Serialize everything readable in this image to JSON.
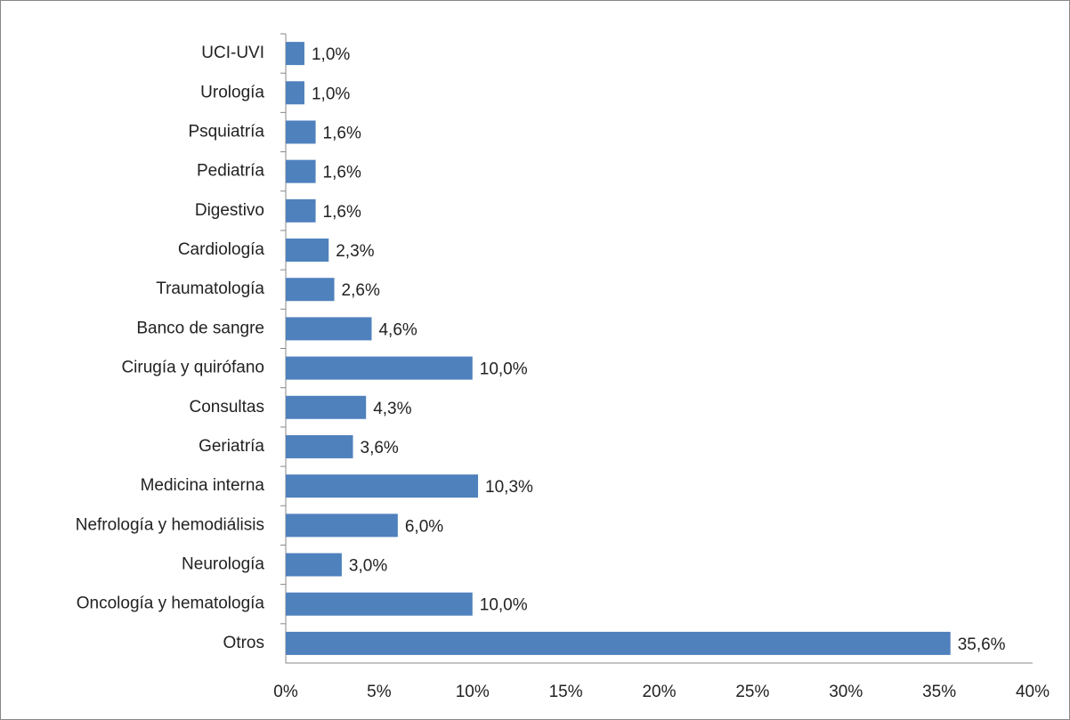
{
  "chart_data": {
    "type": "bar",
    "orientation": "horizontal",
    "categories": [
      "UCI-UVI",
      "Urología",
      "Psquiatría",
      "Pediatría",
      "Digestivo",
      "Cardiología",
      "Traumatología",
      "Banco de sangre",
      "Cirugía y quirófano",
      "Consultas",
      "Geriatría",
      "Medicina interna",
      "Nefrología y hemodiálisis",
      "Neurología",
      "Oncología y hematología",
      "Otros"
    ],
    "values": [
      1.0,
      1.0,
      1.6,
      1.6,
      1.6,
      2.3,
      2.6,
      4.6,
      10.0,
      4.3,
      3.6,
      10.3,
      6.0,
      3.0,
      10.0,
      35.6
    ],
    "value_labels": [
      "1,0%",
      "1,0%",
      "1,6%",
      "1,6%",
      "1,6%",
      "2,3%",
      "2,6%",
      "4,6%",
      "10,0%",
      "4,3%",
      "3,6%",
      "10,3%",
      "6,0%",
      "3,0%",
      "10,0%",
      "35,6%"
    ],
    "color": "#4f81bd",
    "xlim": [
      0,
      40
    ],
    "xticks": [
      {
        "value": 0,
        "label": "0%"
      },
      {
        "value": 5,
        "label": "5%"
      },
      {
        "value": 10,
        "label": "10%"
      },
      {
        "value": 15,
        "label": "15%"
      },
      {
        "value": 20,
        "label": "20%"
      },
      {
        "value": 25,
        "label": "25%"
      },
      {
        "value": 30,
        "label": "30%"
      },
      {
        "value": 35,
        "label": "35%"
      },
      {
        "value": 40,
        "label": "40%"
      }
    ],
    "grid": false
  }
}
